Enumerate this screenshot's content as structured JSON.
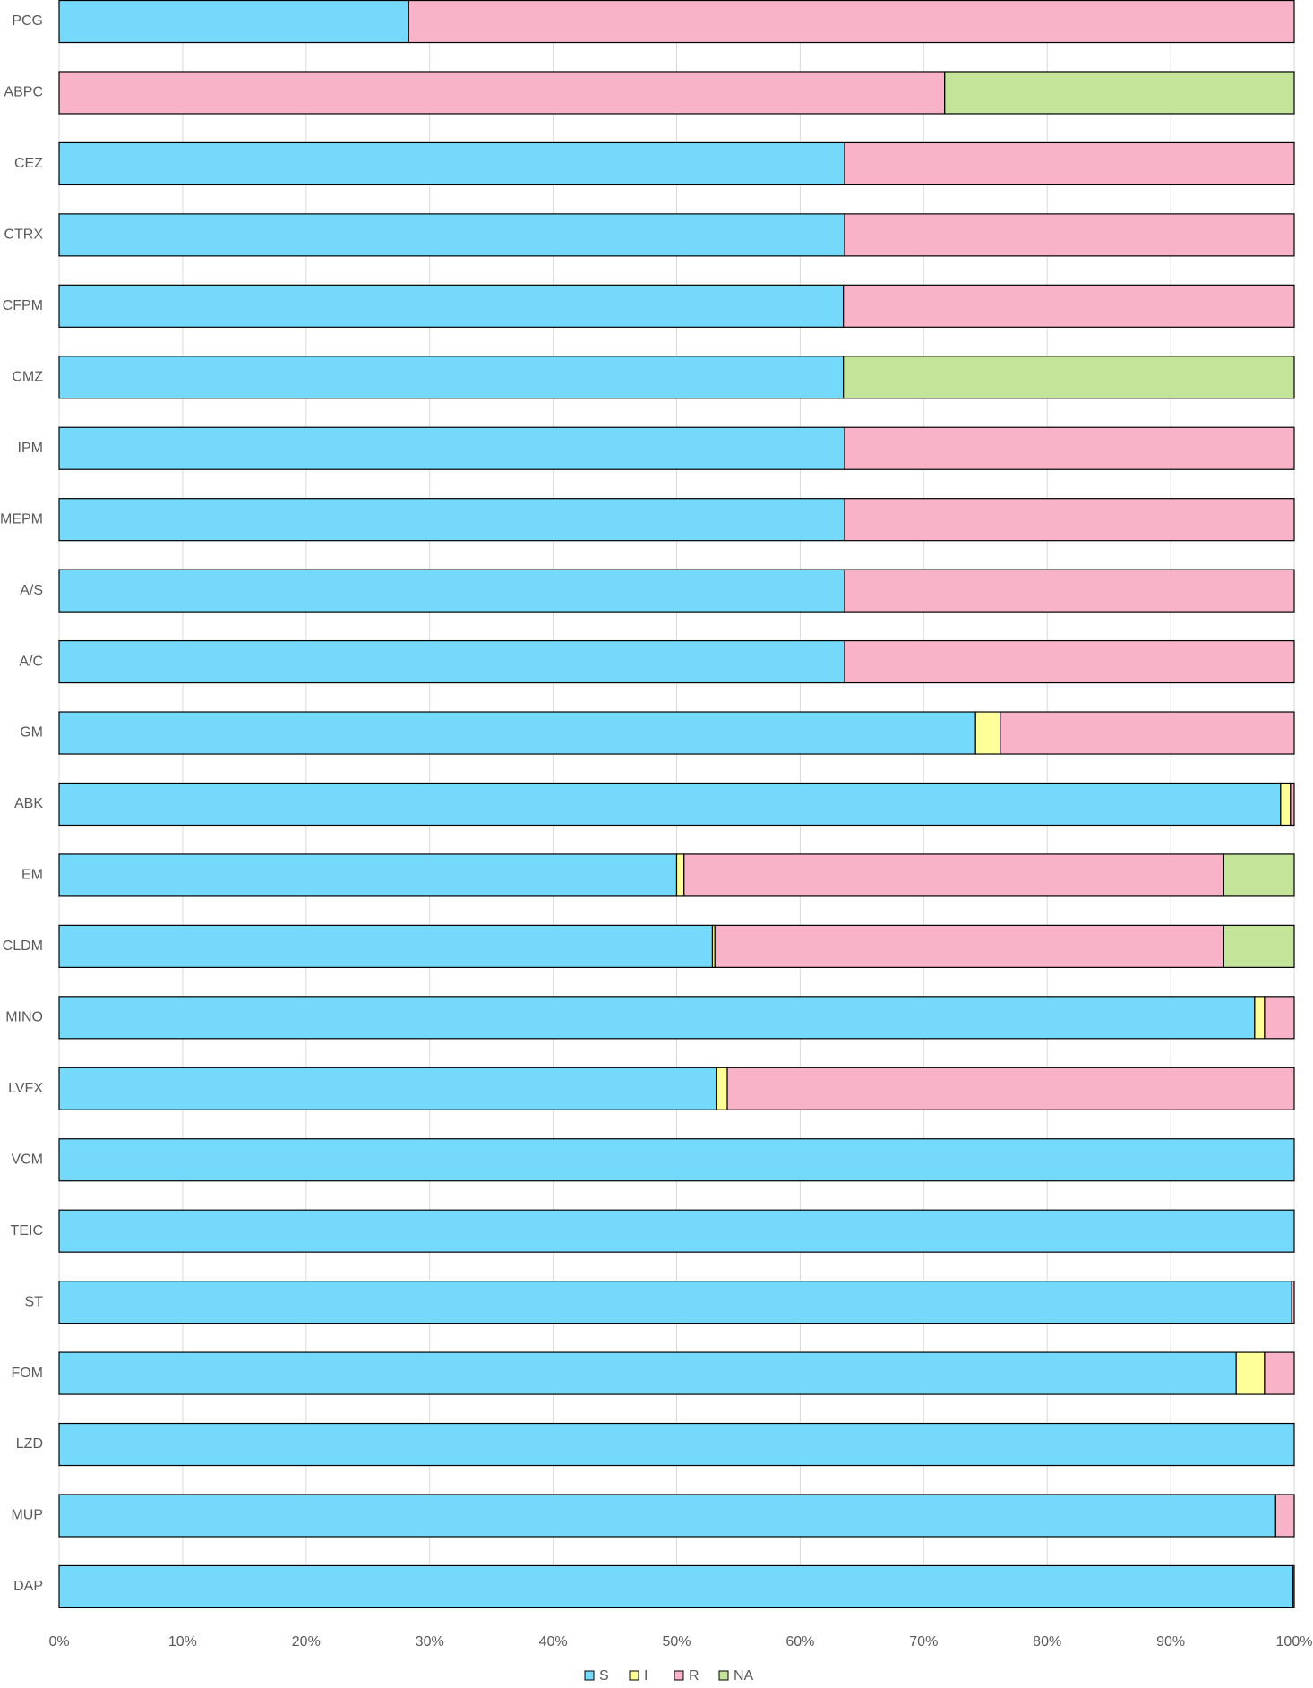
{
  "chart_data": {
    "type": "stacked_barh",
    "categories": [
      "PCG",
      "ABPC",
      "CEZ",
      "CTRX",
      "CFPM",
      "CMZ",
      "IPM",
      "MEPM",
      "A/S",
      "A/C",
      "GM",
      "ABK",
      "EM",
      "CLDM",
      "MINO",
      "LVFX",
      "VCM",
      "TEIC",
      "ST",
      "FOM",
      "LZD",
      "MUP",
      "DAP"
    ],
    "series": [
      {
        "name": "S",
        "color": "#75d9fc",
        "values": [
          28.3,
          0,
          63.6,
          63.6,
          63.5,
          63.5,
          63.6,
          63.6,
          63.6,
          63.6,
          74.2,
          98.9,
          50.0,
          52.9,
          96.8,
          53.2,
          100,
          100,
          99.8,
          95.3,
          100,
          98.5,
          99.9
        ]
      },
      {
        "name": "I",
        "color": "#ffff99",
        "values": [
          0,
          0,
          0,
          0,
          0,
          0,
          0,
          0,
          0,
          0,
          2.0,
          0.8,
          0.6,
          0.2,
          0.8,
          0.9,
          0,
          0,
          0,
          2.3,
          0,
          0,
          0
        ]
      },
      {
        "name": "R",
        "color": "#f8b3c8",
        "values": [
          71.7,
          71.7,
          36.4,
          36.4,
          36.5,
          0,
          36.4,
          36.4,
          36.4,
          36.4,
          23.8,
          0.3,
          43.7,
          41.2,
          2.4,
          45.9,
          0,
          0,
          0.2,
          2.4,
          0,
          1.5,
          0.1
        ]
      },
      {
        "name": "NA",
        "color": "#c4e49a",
        "values": [
          0,
          28.3,
          0,
          0,
          0,
          36.5,
          0,
          0,
          0,
          0,
          0,
          0,
          5.7,
          5.7,
          0,
          0,
          0,
          0,
          0,
          0,
          0,
          0,
          0
        ]
      }
    ],
    "xlim": [
      0,
      100
    ],
    "xticks": [
      {
        "value": 0,
        "label": "0%"
      },
      {
        "value": 10,
        "label": "10%"
      },
      {
        "value": 20,
        "label": "20%"
      },
      {
        "value": 30,
        "label": "30%"
      },
      {
        "value": 40,
        "label": "40%"
      },
      {
        "value": 50,
        "label": "50%"
      },
      {
        "value": 60,
        "label": "60%"
      },
      {
        "value": 70,
        "label": "70%"
      },
      {
        "value": 80,
        "label": "80%"
      },
      {
        "value": 90,
        "label": "90%"
      },
      {
        "value": 100,
        "label": "100%"
      }
    ],
    "grid": true,
    "legend": "bottom"
  }
}
